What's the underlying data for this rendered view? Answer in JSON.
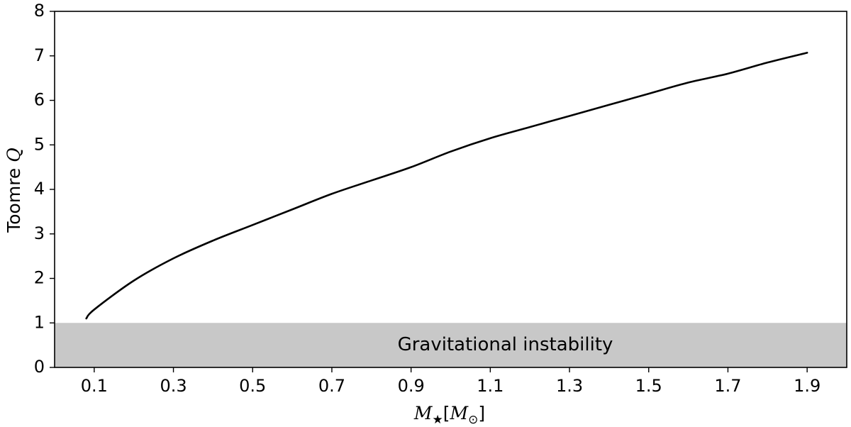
{
  "chart_data": {
    "type": "line",
    "title": "",
    "xlabel": {
      "symbol": "M",
      "sub": "★",
      "bracket_open": "[",
      "unit_symbol": "M",
      "unit_sub": "⊙",
      "bracket_close": "]"
    },
    "ylabel": {
      "text": "Toomre ",
      "symbol": "Q"
    },
    "xlim": [
      0.0,
      2.0
    ],
    "ylim": [
      0,
      8
    ],
    "xticks": [
      0.1,
      0.3,
      0.5,
      0.7,
      0.9,
      1.1,
      1.3,
      1.5,
      1.7,
      1.9
    ],
    "xtick_labels": [
      "0.1",
      "0.3",
      "0.5",
      "0.7",
      "0.9",
      "1.1",
      "1.3",
      "1.5",
      "1.7",
      "1.9"
    ],
    "yticks": [
      0,
      1,
      2,
      3,
      4,
      5,
      6,
      7,
      8
    ],
    "ytick_labels": [
      "0",
      "1",
      "2",
      "3",
      "4",
      "5",
      "6",
      "7",
      "8"
    ],
    "grid": false,
    "series": [
      {
        "color": "#000000",
        "x": [
          0.08,
          0.1,
          0.2,
          0.3,
          0.4,
          0.5,
          0.6,
          0.7,
          0.8,
          0.9,
          1.0,
          1.1,
          1.2,
          1.3,
          1.4,
          1.5,
          1.6,
          1.7,
          1.8,
          1.9
        ],
        "y": [
          1.1,
          1.3,
          1.95,
          2.45,
          2.85,
          3.2,
          3.55,
          3.9,
          4.2,
          4.5,
          4.85,
          5.15,
          5.4,
          5.65,
          5.9,
          6.15,
          6.4,
          6.6,
          6.85,
          7.07
        ]
      }
    ],
    "shaded_region": {
      "y_from": 0,
      "y_to": 1,
      "color": "#c8c8c8",
      "label": "Gravitational instability"
    }
  }
}
